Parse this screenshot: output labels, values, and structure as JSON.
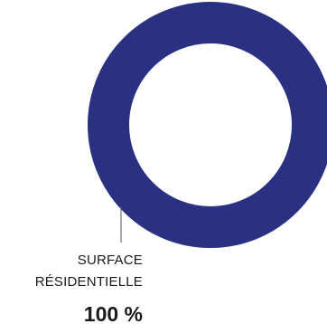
{
  "chart_data": {
    "type": "pie",
    "title": "",
    "slices": [
      {
        "label_lines": [
          "SURFACE",
          "RÉSIDENTIELLE"
        ],
        "value": 100,
        "value_text": "100 %",
        "color": "#2a3082"
      }
    ]
  }
}
